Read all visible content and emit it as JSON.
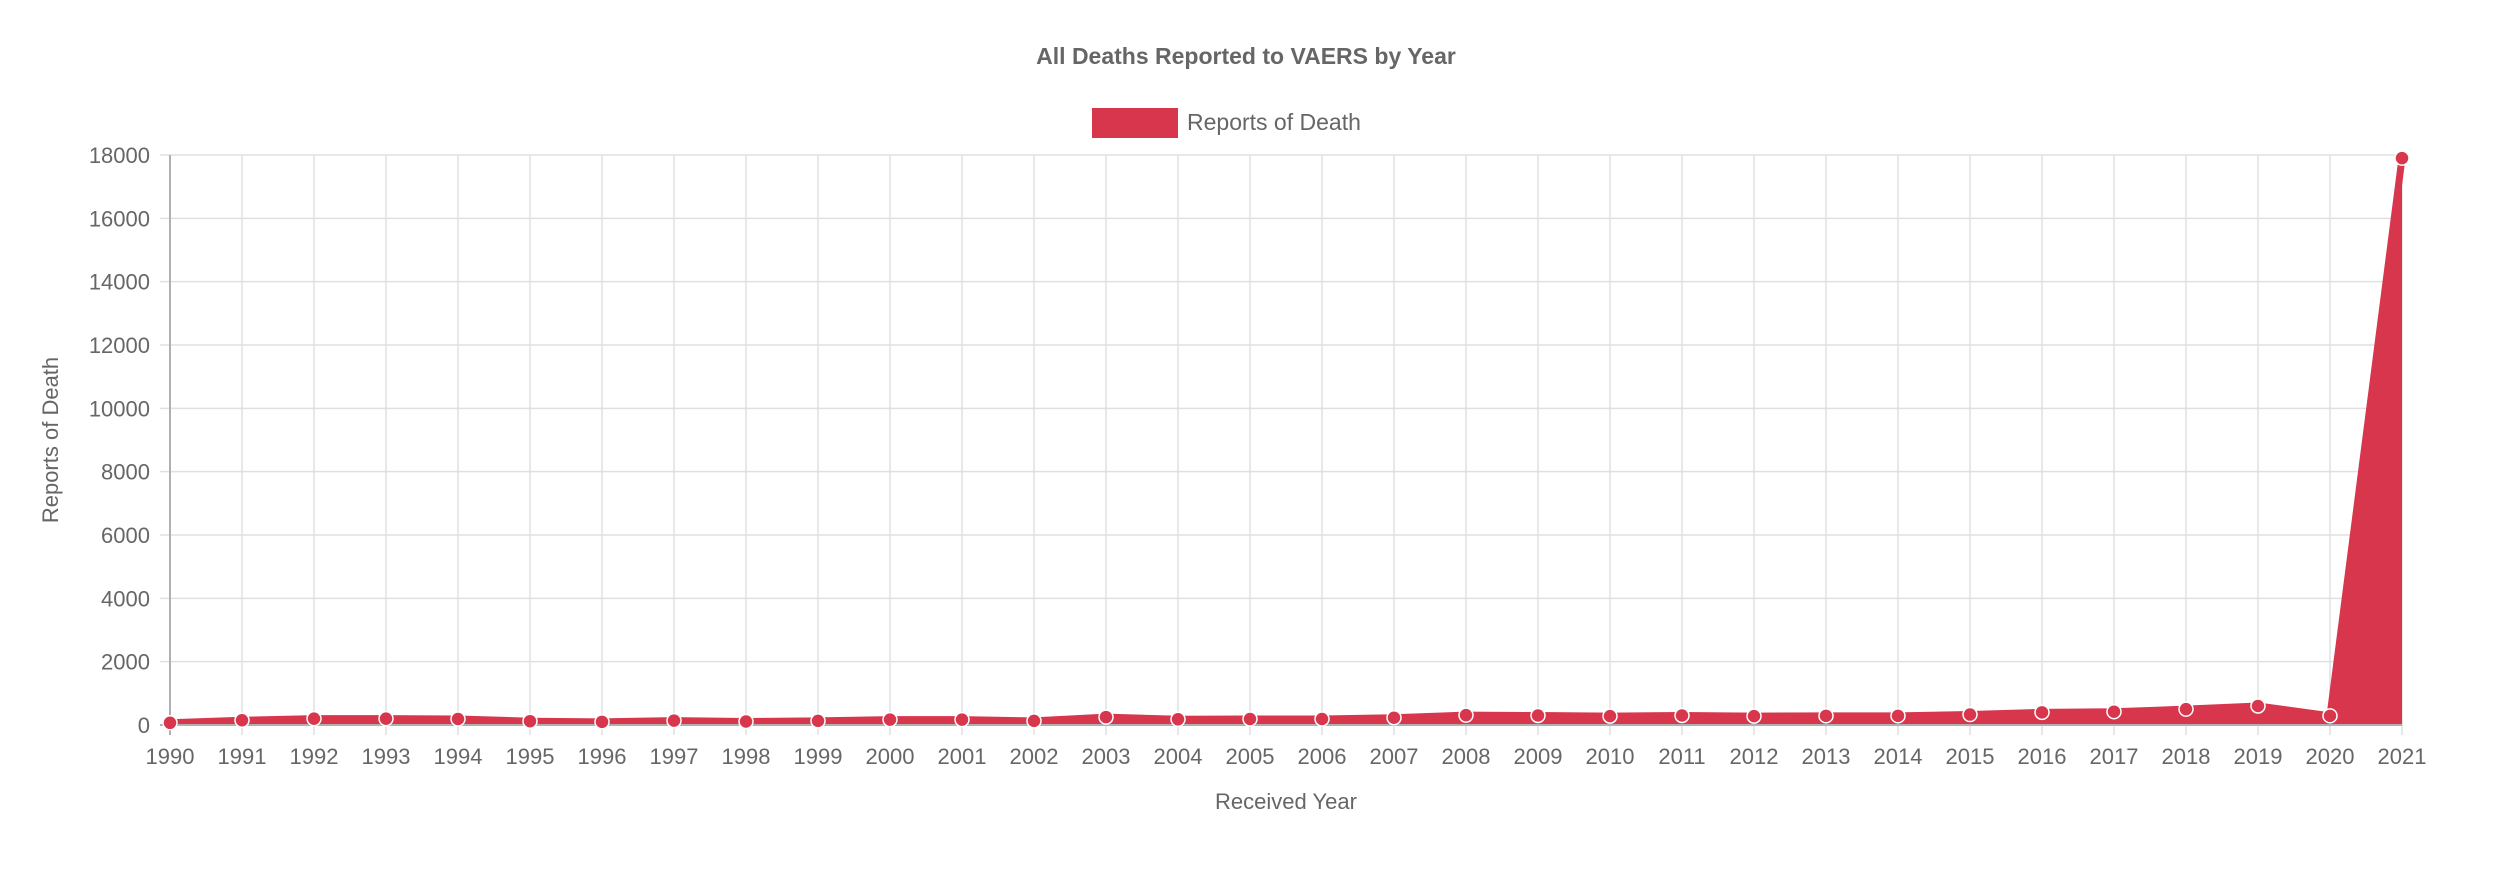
{
  "chart_data": {
    "type": "area",
    "title": "All Deaths Reported to VAERS by Year",
    "xlabel": "Received Year",
    "ylabel": "Reports of Death",
    "ylim": [
      0,
      18000
    ],
    "y_ticks": [
      "18000",
      "16000",
      "14000",
      "12000",
      "10000",
      "8000",
      "6000",
      "4000",
      "2000",
      "0"
    ],
    "categories": [
      "1990",
      "1991",
      "1992",
      "1993",
      "1994",
      "1995",
      "1996",
      "1997",
      "1998",
      "1999",
      "2000",
      "2001",
      "2002",
      "2003",
      "2004",
      "2005",
      "2006",
      "2007",
      "2008",
      "2009",
      "2010",
      "2011",
      "2012",
      "2013",
      "2014",
      "2015",
      "2016",
      "2017",
      "2018",
      "2019",
      "2020",
      "2021"
    ],
    "series": [
      {
        "name": "Reports of Death",
        "values": [
          70,
          150,
          200,
          200,
          190,
          120,
          100,
          140,
          110,
          130,
          170,
          170,
          130,
          250,
          180,
          190,
          190,
          230,
          310,
          300,
          280,
          300,
          280,
          290,
          290,
          330,
          400,
          420,
          500,
          600,
          290,
          17900
        ],
        "color": "#d7364d"
      }
    ],
    "grid": true,
    "legend": "top-center"
  }
}
